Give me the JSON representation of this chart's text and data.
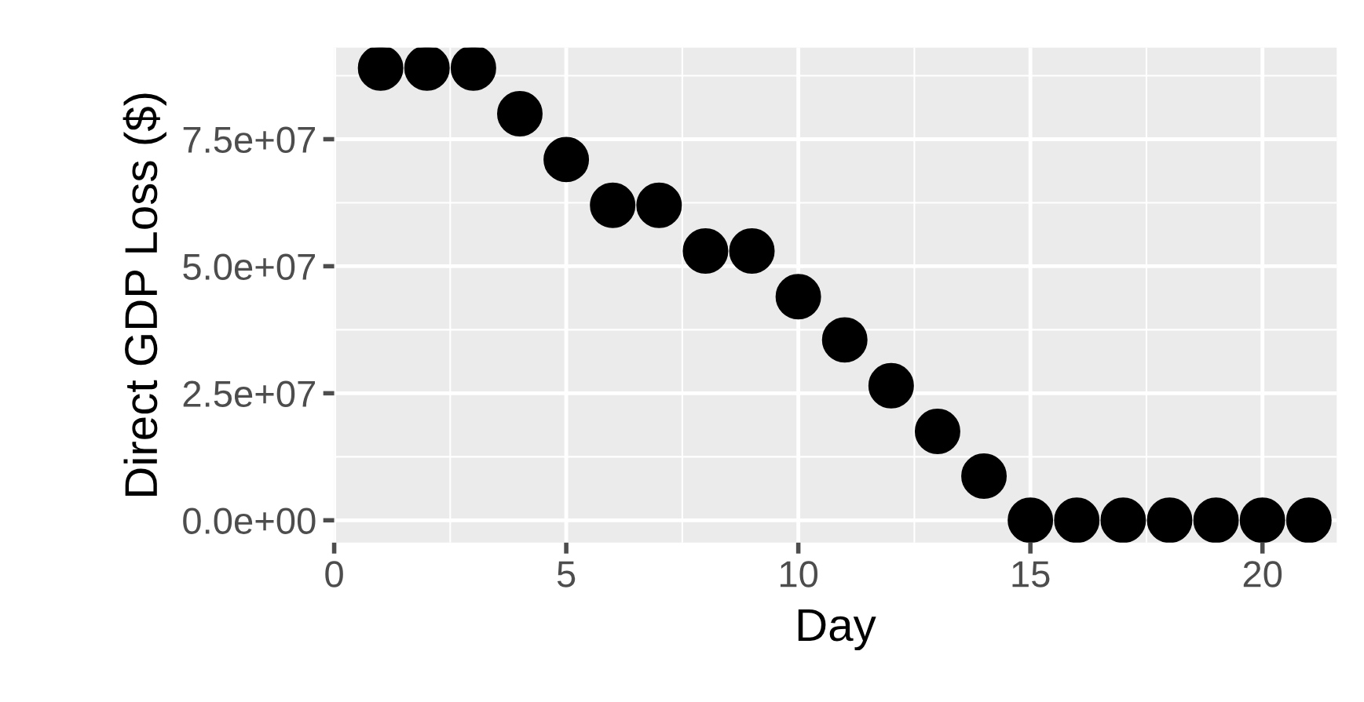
{
  "chart_data": {
    "type": "scatter",
    "xlabel": "Day",
    "ylabel": "Direct GDP Loss ($)",
    "x": [
      1,
      2,
      3,
      4,
      5,
      6,
      7,
      8,
      9,
      10,
      11,
      12,
      13,
      14,
      15,
      16,
      17,
      18,
      19,
      20,
      21
    ],
    "series": [
      {
        "color": "#000000",
        "values": [
          89000000.0,
          89000000.0,
          89000000.0,
          80000000.0,
          71000000.0,
          62000000.0,
          62000000.0,
          53000000.0,
          53000000.0,
          44000000.0,
          35500000.0,
          26500000.0,
          17500000.0,
          8700000.0,
          0,
          0,
          0,
          0,
          0,
          0,
          0
        ]
      }
    ],
    "xlim": [
      0,
      21.6
    ],
    "xticks": [
      0,
      5,
      10,
      15,
      20
    ],
    "ylim": [
      -4400000.0,
      93000000.0
    ],
    "yticks": [
      {
        "value": 0,
        "label": "0.0e+00"
      },
      {
        "value": 25000000,
        "label": "2.5e+07"
      },
      {
        "value": 50000000,
        "label": "5.0e+07"
      },
      {
        "value": 75000000,
        "label": "7.5e+07"
      }
    ],
    "grid": true,
    "marker": "circle"
  }
}
